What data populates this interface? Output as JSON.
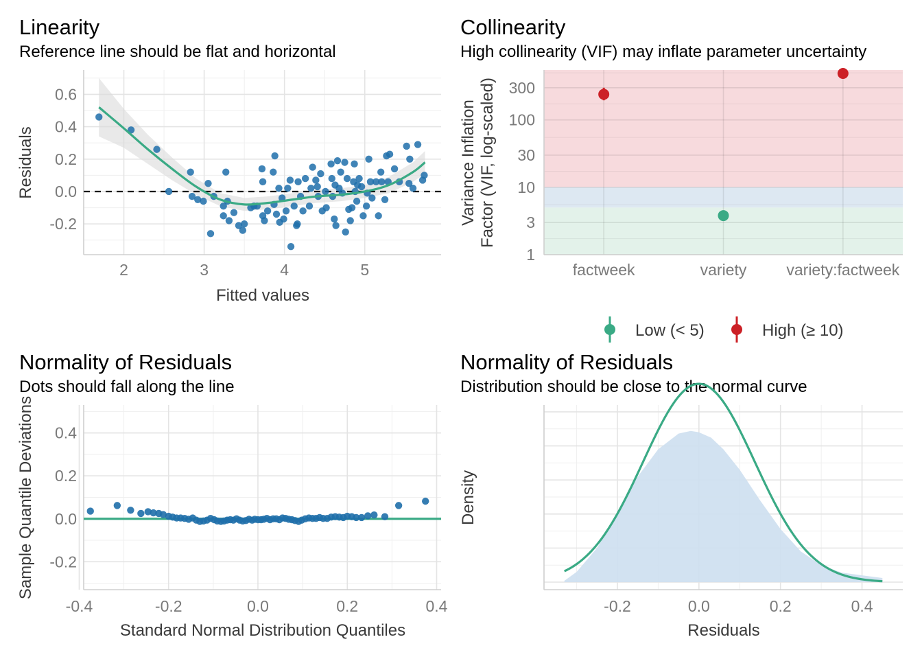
{
  "colors": {
    "accent_green": "#3aaa85",
    "point_blue": "#1f6faa",
    "high_red": "#cc2026",
    "band_red": "#f7dadd",
    "band_blue": "#dde8f2",
    "band_green": "#e3f2ea",
    "density_fill": "#cddff0",
    "ci_band": "#dadada"
  },
  "chart_data": [
    {
      "id": "linearity",
      "type": "scatter",
      "title": "Linearity",
      "subtitle": "Reference line should be flat and horizontal",
      "xlabel": "Fitted values",
      "ylabel": "Residuals",
      "xlim": [
        1.5,
        5.95
      ],
      "ylim": [
        -0.39,
        0.75
      ],
      "xticks": [
        2,
        3,
        4,
        5
      ],
      "xtick_labels": [
        "2",
        "3",
        "4",
        "5"
      ],
      "yticks": [
        -0.2,
        0.0,
        0.2,
        0.4,
        0.6
      ],
      "ytick_labels": [
        "-0.2",
        "0.0",
        "0.2",
        "0.4",
        "0.6"
      ],
      "reference_line_y": 0,
      "points": [
        [
          1.69,
          0.46
        ],
        [
          2.09,
          0.38
        ],
        [
          2.41,
          0.26
        ],
        [
          2.56,
          0.0
        ],
        [
          2.83,
          0.12
        ],
        [
          2.85,
          -0.03
        ],
        [
          2.92,
          -0.05
        ],
        [
          2.99,
          -0.06
        ],
        [
          3.05,
          0.05
        ],
        [
          3.08,
          -0.26
        ],
        [
          3.12,
          -0.03
        ],
        [
          3.24,
          -0.09
        ],
        [
          3.24,
          -0.15
        ],
        [
          3.27,
          0.12
        ],
        [
          3.29,
          -0.06
        ],
        [
          3.31,
          -0.18
        ],
        [
          3.37,
          -0.13
        ],
        [
          3.43,
          -0.21
        ],
        [
          3.48,
          -0.24
        ],
        [
          3.5,
          -0.2
        ],
        [
          3.58,
          -0.1
        ],
        [
          3.62,
          -0.09
        ],
        [
          3.66,
          -0.09
        ],
        [
          3.72,
          0.14
        ],
        [
          3.73,
          0.06
        ],
        [
          3.73,
          -0.15
        ],
        [
          3.75,
          -0.18
        ],
        [
          3.79,
          -0.12
        ],
        [
          3.86,
          0.12
        ],
        [
          3.87,
          -0.08
        ],
        [
          3.88,
          0.22
        ],
        [
          3.9,
          -0.14
        ],
        [
          3.93,
          0.02
        ],
        [
          3.94,
          -0.19
        ],
        [
          3.97,
          -0.04
        ],
        [
          3.99,
          -0.17
        ],
        [
          4.02,
          -0.12
        ],
        [
          4.04,
          0.02
        ],
        [
          4.07,
          0.07
        ],
        [
          4.08,
          -0.34
        ],
        [
          4.12,
          -0.09
        ],
        [
          4.15,
          -0.21
        ],
        [
          4.16,
          -0.2
        ],
        [
          4.17,
          0.06
        ],
        [
          4.2,
          -0.03
        ],
        [
          4.23,
          -0.12
        ],
        [
          4.26,
          0.08
        ],
        [
          4.31,
          -0.09
        ],
        [
          4.33,
          0.02
        ],
        [
          4.35,
          0.15
        ],
        [
          4.39,
          0.07
        ],
        [
          4.41,
          0.03
        ],
        [
          4.42,
          -0.03
        ],
        [
          4.45,
          0.11
        ],
        [
          4.47,
          -0.12
        ],
        [
          4.51,
          0.0
        ],
        [
          4.52,
          -0.1
        ],
        [
          4.58,
          0.17
        ],
        [
          4.59,
          0.08
        ],
        [
          4.6,
          -0.03
        ],
        [
          4.62,
          -0.17
        ],
        [
          4.63,
          0.04
        ],
        [
          4.64,
          -0.21
        ],
        [
          4.66,
          0.19
        ],
        [
          4.68,
          0.02
        ],
        [
          4.7,
          0.12
        ],
        [
          4.72,
          -0.01
        ],
        [
          4.75,
          0.18
        ],
        [
          4.76,
          -0.25
        ],
        [
          4.78,
          0.08
        ],
        [
          4.8,
          -0.11
        ],
        [
          4.82,
          -0.18
        ],
        [
          4.84,
          -0.1
        ],
        [
          4.86,
          0.06
        ],
        [
          4.87,
          0.17
        ],
        [
          4.88,
          0.0
        ],
        [
          4.9,
          -0.06
        ],
        [
          4.91,
          0.04
        ],
        [
          4.93,
          0.08
        ],
        [
          4.96,
          0.03
        ],
        [
          4.98,
          -0.15
        ],
        [
          5.02,
          -0.09
        ],
        [
          5.03,
          -0.01
        ],
        [
          5.05,
          0.2
        ],
        [
          5.07,
          0.06
        ],
        [
          5.09,
          -0.04
        ],
        [
          5.14,
          0.06
        ],
        [
          5.17,
          -0.15
        ],
        [
          5.2,
          0.12
        ],
        [
          5.21,
          0.06
        ],
        [
          5.25,
          -0.05
        ],
        [
          5.27,
          0.22
        ],
        [
          5.29,
          0.06
        ],
        [
          5.31,
          0.23
        ],
        [
          5.37,
          0.14
        ],
        [
          5.43,
          0.06
        ],
        [
          5.52,
          0.28
        ],
        [
          5.55,
          0.05
        ],
        [
          5.56,
          0.2
        ],
        [
          5.6,
          0.02
        ],
        [
          5.66,
          0.29
        ],
        [
          5.72,
          0.07
        ],
        [
          5.74,
          0.1
        ]
      ],
      "smooth": {
        "x": [
          1.69,
          2.0,
          2.3,
          2.6,
          2.9,
          3.2,
          3.5,
          3.8,
          4.1,
          4.4,
          4.7,
          5.0,
          5.3,
          5.6,
          5.75
        ],
        "y": [
          0.52,
          0.39,
          0.26,
          0.14,
          0.03,
          -0.05,
          -0.08,
          -0.07,
          -0.05,
          -0.03,
          -0.02,
          0.0,
          0.04,
          0.12,
          0.18
        ],
        "ci_lower": [
          0.34,
          0.27,
          0.17,
          0.07,
          -0.02,
          -0.09,
          -0.12,
          -0.11,
          -0.09,
          -0.07,
          -0.06,
          -0.04,
          -0.01,
          0.06,
          0.11
        ],
        "ci_upper": [
          0.7,
          0.51,
          0.35,
          0.21,
          0.08,
          -0.01,
          -0.04,
          -0.03,
          -0.01,
          0.01,
          0.02,
          0.04,
          0.09,
          0.18,
          0.25
        ]
      }
    },
    {
      "id": "collinearity",
      "type": "scatter",
      "title": "Collinearity",
      "subtitle": "High collinearity (VIF) may inflate parameter uncertainty",
      "xlabel": "",
      "ylabel_lines": [
        "Variance Inflation",
        "Factor (VIF, log-scaled)"
      ],
      "log_scale_y": true,
      "ylim": [
        1,
        550
      ],
      "yticks": [
        1,
        3,
        10,
        30,
        100,
        300
      ],
      "ytick_labels": [
        "1",
        "3",
        "10",
        "30",
        "100",
        "300"
      ],
      "categories": [
        "factweek",
        "variety",
        "variety:factweek"
      ],
      "values": [
        240,
        3.8,
        560
      ],
      "ci_low": [
        200,
        3.3,
        470
      ],
      "ci_high": [
        300,
        4.4,
        600
      ],
      "level": [
        "high",
        "low",
        "high"
      ],
      "legend": [
        {
          "label": "Low (< 5)",
          "level": "low"
        },
        {
          "label": "High (≥ 10)",
          "level": "high"
        }
      ],
      "legend_position": "bottom"
    },
    {
      "id": "qq",
      "type": "scatter",
      "title": "Normality of Residuals",
      "subtitle": "Dots should fall along the line",
      "xlabel": "Standard Normal Distribution Quantiles",
      "ylabel": "Sample Quantile Deviations",
      "xlim": [
        -0.39,
        0.41
      ],
      "ylim": [
        -0.33,
        0.53
      ],
      "xticks": [
        -0.4,
        -0.2,
        0.0,
        0.2,
        0.4
      ],
      "xtick_labels": [
        "-0.4",
        "-0.2",
        "0.0",
        "0.2",
        "0.4"
      ],
      "yticks": [
        -0.2,
        0.0,
        0.2,
        0.4
      ],
      "ytick_labels": [
        "-0.2",
        "0.0",
        "0.2",
        "0.4"
      ],
      "reference_line_y": 0,
      "points": [
        [
          -0.375,
          0.036
        ],
        [
          -0.315,
          0.062
        ],
        [
          -0.285,
          0.04
        ],
        [
          -0.262,
          0.025
        ],
        [
          -0.246,
          0.033
        ],
        [
          -0.234,
          0.028
        ],
        [
          -0.222,
          0.025
        ],
        [
          -0.212,
          0.02
        ],
        [
          -0.2,
          0.012
        ],
        [
          -0.191,
          0.008
        ],
        [
          -0.182,
          0.004
        ],
        [
          -0.173,
          0.004
        ],
        [
          -0.164,
          0.002
        ],
        [
          -0.155,
          -0.002
        ],
        [
          -0.146,
          0.004
        ],
        [
          -0.138,
          -0.006
        ],
        [
          -0.13,
          -0.012
        ],
        [
          -0.122,
          -0.01
        ],
        [
          -0.114,
          -0.006
        ],
        [
          -0.106,
          0.002
        ],
        [
          -0.098,
          -0.004
        ],
        [
          -0.091,
          -0.01
        ],
        [
          -0.083,
          -0.012
        ],
        [
          -0.076,
          -0.01
        ],
        [
          -0.069,
          -0.006
        ],
        [
          -0.062,
          -0.004
        ],
        [
          -0.055,
          -0.006
        ],
        [
          -0.048,
          0.0
        ],
        [
          -0.041,
          -0.006
        ],
        [
          -0.034,
          -0.01
        ],
        [
          -0.027,
          -0.008
        ],
        [
          -0.02,
          -0.002
        ],
        [
          -0.013,
          -0.006
        ],
        [
          -0.007,
          -0.002
        ],
        [
          0.0,
          -0.004
        ],
        [
          0.007,
          -0.004
        ],
        [
          0.013,
          -0.002
        ],
        [
          0.02,
          0.002
        ],
        [
          0.027,
          -0.004
        ],
        [
          0.034,
          0.0
        ],
        [
          0.041,
          0.0
        ],
        [
          0.048,
          -0.004
        ],
        [
          0.055,
          0.004
        ],
        [
          0.062,
          0.002
        ],
        [
          0.069,
          -0.002
        ],
        [
          0.076,
          -0.004
        ],
        [
          0.083,
          -0.008
        ],
        [
          0.091,
          -0.012
        ],
        [
          0.098,
          -0.006
        ],
        [
          0.106,
          0.0
        ],
        [
          0.114,
          0.004
        ],
        [
          0.122,
          0.002
        ],
        [
          0.13,
          0.002
        ],
        [
          0.138,
          0.006
        ],
        [
          0.146,
          0.002
        ],
        [
          0.155,
          0.002
        ],
        [
          0.164,
          0.008
        ],
        [
          0.173,
          0.01
        ],
        [
          0.182,
          0.008
        ],
        [
          0.191,
          0.006
        ],
        [
          0.2,
          0.012
        ],
        [
          0.21,
          0.01
        ],
        [
          0.22,
          0.006
        ],
        [
          0.232,
          0.006
        ],
        [
          0.246,
          0.014
        ],
        [
          0.26,
          0.018
        ],
        [
          0.284,
          0.01
        ],
        [
          0.315,
          0.062
        ],
        [
          0.375,
          0.082
        ]
      ]
    },
    {
      "id": "density",
      "type": "area",
      "title": "Normality of Residuals",
      "subtitle": "Distribution should be close to the normal curve",
      "xlabel": "Residuals",
      "ylabel": "Density",
      "xlim": [
        -0.38,
        0.5
      ],
      "ylim": [
        0,
        2.6
      ],
      "xticks": [
        -0.2,
        0.0,
        0.2,
        0.4
      ],
      "xtick_labels": [
        "-0.2",
        "0.0",
        "0.2",
        "0.4"
      ],
      "density": {
        "x": [
          -0.33,
          -0.3,
          -0.25,
          -0.2,
          -0.15,
          -0.1,
          -0.05,
          -0.02,
          0.0,
          0.03,
          0.06,
          0.1,
          0.15,
          0.2,
          0.25,
          0.3,
          0.35,
          0.4,
          0.45
        ],
        "y": [
          0.02,
          0.15,
          0.5,
          1.0,
          1.55,
          1.95,
          2.18,
          2.22,
          2.2,
          2.12,
          1.95,
          1.65,
          1.2,
          0.78,
          0.45,
          0.25,
          0.14,
          0.1,
          0.06
        ]
      },
      "normal_curve": {
        "mean": 0.0,
        "sd": 0.137
      }
    }
  ]
}
